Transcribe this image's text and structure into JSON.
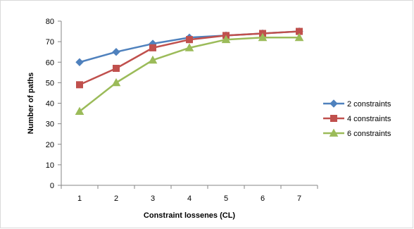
{
  "chart_data": {
    "type": "line",
    "title": "",
    "xlabel": "Constraint lossenes (CL)",
    "ylabel": "Number of paths",
    "categories": [
      "1",
      "2",
      "3",
      "4",
      "5",
      "6",
      "7"
    ],
    "ylim": [
      0,
      80
    ],
    "yticks": [
      "0",
      "10",
      "20",
      "30",
      "40",
      "50",
      "60",
      "70",
      "80"
    ],
    "grid": false,
    "legend_position": "right",
    "series": [
      {
        "name": "2 constraints",
        "values": [
          60,
          65,
          69,
          72,
          73,
          74,
          75
        ],
        "color": "#4f81bd",
        "marker": "diamond"
      },
      {
        "name": "4 constraints",
        "values": [
          49,
          57,
          67,
          71,
          73,
          74,
          75
        ],
        "color": "#c0504d",
        "marker": "square"
      },
      {
        "name": "6 constraints",
        "values": [
          36,
          50,
          61,
          67,
          71,
          72,
          72
        ],
        "color": "#9bbb59",
        "marker": "triangle"
      }
    ]
  }
}
